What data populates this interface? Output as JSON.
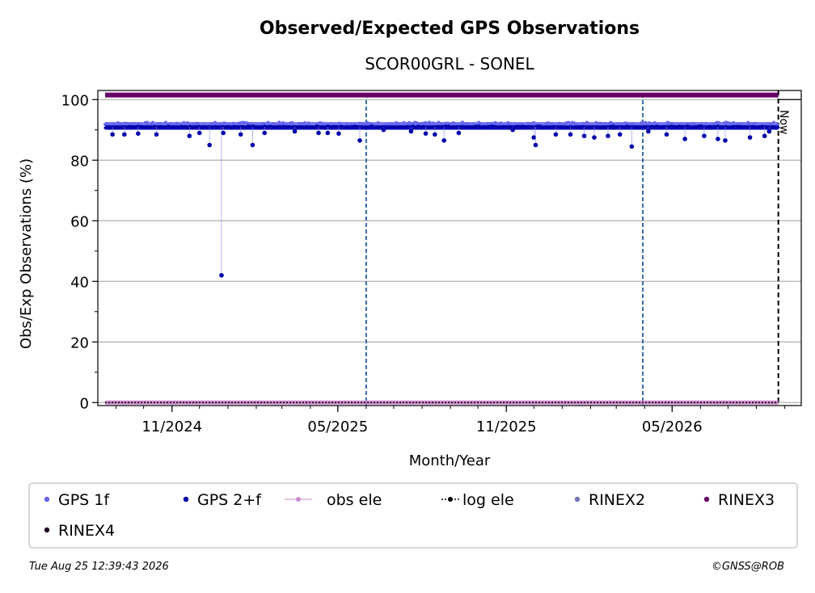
{
  "chart_data": {
    "type": "scatter",
    "title": "Observed/Expected GPS Observations",
    "subtitle": "SCOR00GRL - SONEL",
    "xlabel": "Month/Year",
    "ylabel": "Obs/Exp Observations (%)",
    "x_ticks": [
      "11/2024",
      "05/2025",
      "11/2025",
      "05/2026"
    ],
    "y_ticks": [
      0,
      20,
      40,
      60,
      80,
      100
    ],
    "ylim": [
      -1,
      103
    ],
    "xlim": [
      "2024-08-12",
      "2026-09-19"
    ],
    "grid": "horizontal",
    "now_label": "Now",
    "now_date": "2026-08-25",
    "vlines": [
      "2025-06-01",
      "2026-03-30"
    ],
    "series": [
      {
        "name": "GPS 1f",
        "color": "#6666ee",
        "baseline": 91.8
      },
      {
        "name": "GPS 2+f",
        "color": "#0000aa",
        "baseline": 91.0,
        "dips": [
          {
            "x": "2024-08-28",
            "y": 88.5
          },
          {
            "x": "2024-09-10",
            "y": 88.5
          },
          {
            "x": "2024-09-25",
            "y": 88.8
          },
          {
            "x": "2024-10-15",
            "y": 88.5
          },
          {
            "x": "2024-11-20",
            "y": 88.0
          },
          {
            "x": "2024-12-01",
            "y": 89.0
          },
          {
            "x": "2024-12-12",
            "y": 85.0
          },
          {
            "x": "2024-12-25",
            "y": 42.0
          },
          {
            "x": "2024-12-27",
            "y": 89.0
          },
          {
            "x": "2025-01-15",
            "y": 88.5
          },
          {
            "x": "2025-01-28",
            "y": 85.0
          },
          {
            "x": "2025-02-10",
            "y": 89.0
          },
          {
            "x": "2025-03-15",
            "y": 89.5
          },
          {
            "x": "2025-04-10",
            "y": 89.0
          },
          {
            "x": "2025-04-20",
            "y": 89.0
          },
          {
            "x": "2025-05-02",
            "y": 88.8
          },
          {
            "x": "2025-05-25",
            "y": 86.5
          },
          {
            "x": "2025-06-20",
            "y": 90.0
          },
          {
            "x": "2025-07-20",
            "y": 89.5
          },
          {
            "x": "2025-08-05",
            "y": 88.8
          },
          {
            "x": "2025-08-15",
            "y": 88.5
          },
          {
            "x": "2025-08-25",
            "y": 86.5
          },
          {
            "x": "2025-09-10",
            "y": 89.0
          },
          {
            "x": "2025-11-08",
            "y": 90.0
          },
          {
            "x": "2025-12-01",
            "y": 87.5
          },
          {
            "x": "2025-12-03",
            "y": 85.0
          },
          {
            "x": "2025-12-25",
            "y": 88.5
          },
          {
            "x": "2026-01-10",
            "y": 88.5
          },
          {
            "x": "2026-01-25",
            "y": 88.0
          },
          {
            "x": "2026-02-05",
            "y": 87.5
          },
          {
            "x": "2026-02-20",
            "y": 88.0
          },
          {
            "x": "2026-03-05",
            "y": 88.5
          },
          {
            "x": "2026-03-18",
            "y": 84.5
          },
          {
            "x": "2026-04-05",
            "y": 89.5
          },
          {
            "x": "2026-04-25",
            "y": 88.5
          },
          {
            "x": "2026-05-15",
            "y": 87.0
          },
          {
            "x": "2026-06-05",
            "y": 88.0
          },
          {
            "x": "2026-06-20",
            "y": 87.0
          },
          {
            "x": "2026-06-28",
            "y": 86.5
          },
          {
            "x": "2026-07-25",
            "y": 87.5
          },
          {
            "x": "2026-08-10",
            "y": 88.0
          },
          {
            "x": "2026-08-15",
            "y": 89.5
          }
        ]
      },
      {
        "name": "obs ele",
        "color": "#cc88cc",
        "baseline": 0
      },
      {
        "name": "log ele",
        "color": "#000000",
        "baseline": 0
      },
      {
        "name": "RINEX2",
        "color": "#7777bb"
      },
      {
        "name": "RINEX3",
        "color": "#660066",
        "baseline": 101.5
      },
      {
        "name": "RINEX4",
        "color": "#220022"
      }
    ]
  },
  "footer": {
    "timestamp": "Tue Aug 25 12:39:43 2026",
    "credit": "©GNSS@ROB"
  }
}
